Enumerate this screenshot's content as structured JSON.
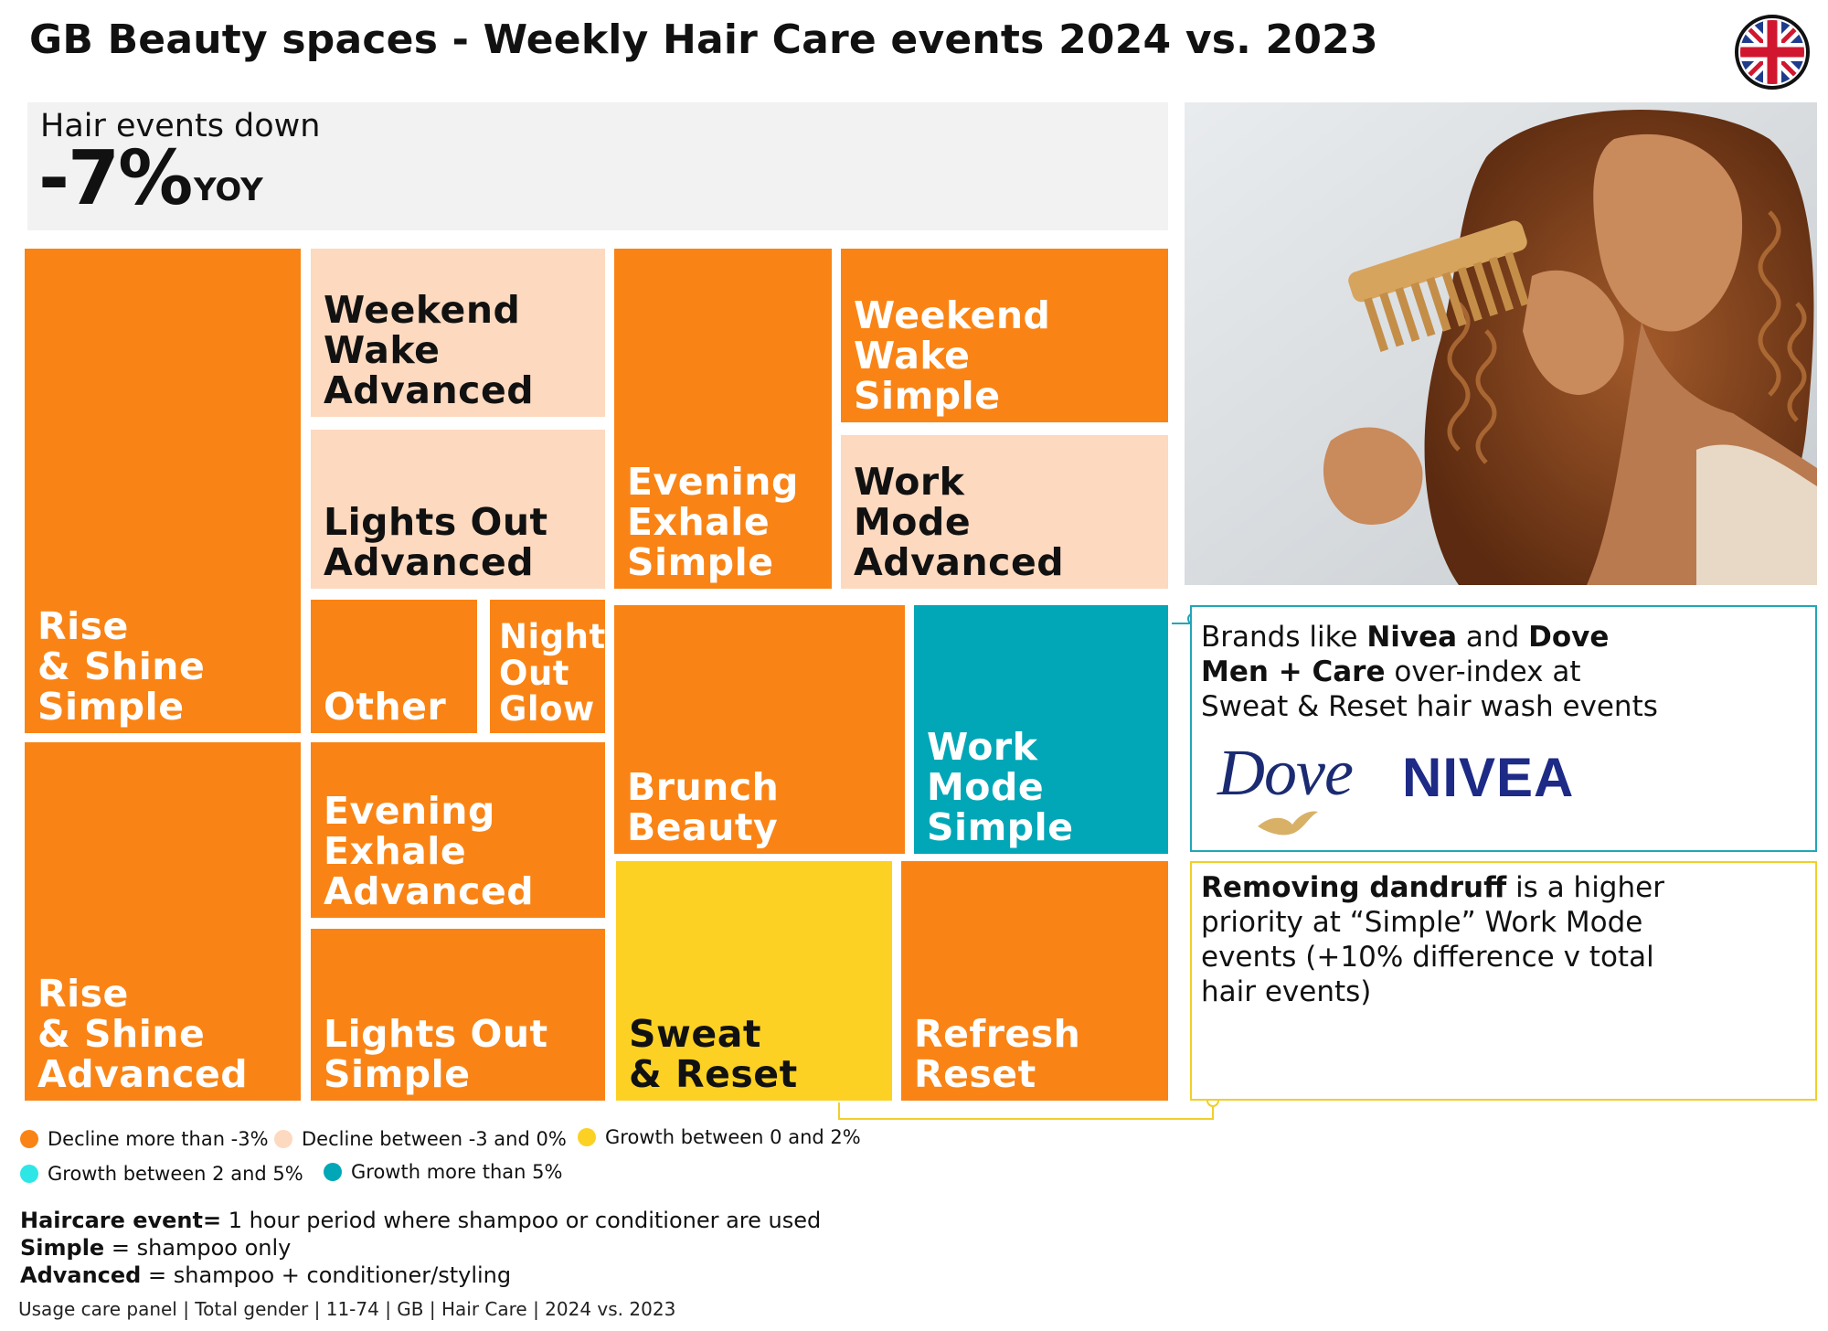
{
  "title": "GB Beauty spaces - Weekly Hair Care events 2024 vs. 2023",
  "flag_icon": "uk-flag-icon",
  "kpi": {
    "line1": "Hair events down",
    "value": "-7%",
    "unit": "YOY"
  },
  "colors": {
    "decline_more_than_3": "#f98415",
    "decline_between": "#fdd9bf",
    "growth_0_2": "#fcd123",
    "growth_2_5": "#2ee6e6",
    "growth_more_than_5": "#02a7b7"
  },
  "chart_data": {
    "type": "treemap",
    "title": "GB Beauty spaces - Weekly Hair Care events 2024 vs. 2023",
    "legend_position": "bottom-left",
    "legend": [
      {
        "key": "decline_more_than_3",
        "label": "Decline more than -3%"
      },
      {
        "key": "decline_between",
        "label": "Decline between -3 and 0%"
      },
      {
        "key": "growth_0_2",
        "label": "Growth between 0 and 2%"
      },
      {
        "key": "growth_2_5",
        "label": "Growth between 2 and 5%"
      },
      {
        "key": "growth_more_than_5",
        "label": "Growth more than 5%"
      }
    ],
    "tiles": [
      {
        "label": "Rise\n& Shine\nSimple",
        "category": "decline_more_than_3"
      },
      {
        "label": "Rise\n& Shine\nAdvanced",
        "category": "decline_more_than_3"
      },
      {
        "label": "Weekend\nWake\nAdvanced",
        "category": "decline_between"
      },
      {
        "label": "Lights Out\nAdvanced",
        "category": "decline_between"
      },
      {
        "label": "Other",
        "category": "decline_more_than_3"
      },
      {
        "label": "Night\nOut\nGlow",
        "category": "decline_more_than_3"
      },
      {
        "label": "Evening\nExhale\nAdvanced",
        "category": "decline_more_than_3"
      },
      {
        "label": "Lights Out\nSimple",
        "category": "decline_more_than_3"
      },
      {
        "label": "Evening\nExhale\nSimple",
        "category": "decline_more_than_3"
      },
      {
        "label": "Weekend\nWake\nSimple",
        "category": "decline_more_than_3"
      },
      {
        "label": "Work\nMode\nAdvanced",
        "category": "decline_between"
      },
      {
        "label": "Brunch\nBeauty",
        "category": "decline_more_than_3"
      },
      {
        "label": "Work\nMode\nSimple",
        "category": "growth_more_than_5"
      },
      {
        "label": "Sweat\n& Reset",
        "category": "growth_0_2"
      },
      {
        "label": "Refresh\nReset",
        "category": "decline_more_than_3"
      }
    ]
  },
  "callouts": {
    "brands": {
      "parts": [
        {
          "t": "Brands like ",
          "b": false
        },
        {
          "t": "Nivea",
          "b": true
        },
        {
          "t": " and ",
          "b": false
        },
        {
          "t": "Dove Men + Care",
          "b": true
        },
        {
          "t": " over-index at Sweat & Reset hair wash events",
          "b": false
        }
      ],
      "logos": {
        "dove": "Dove",
        "nivea": "NIVEA"
      }
    },
    "dandruff": {
      "parts": [
        {
          "t": "Removing dandruff",
          "b": true
        },
        {
          "t": " is a higher priority at “Simple” Work Mode events (+10% difference v total hair events)",
          "b": false
        }
      ]
    }
  },
  "definitions": [
    {
      "term": "Haircare event=",
      "desc": " 1 hour period where shampoo or conditioner are used"
    },
    {
      "term": "Simple",
      "desc": " = shampoo only"
    },
    {
      "term": "Advanced",
      "desc": " = shampoo + conditioner/styling"
    }
  ],
  "source": "Usage care panel | Total gender | 11-74 | GB | Hair Care | 2024 vs. 2023"
}
